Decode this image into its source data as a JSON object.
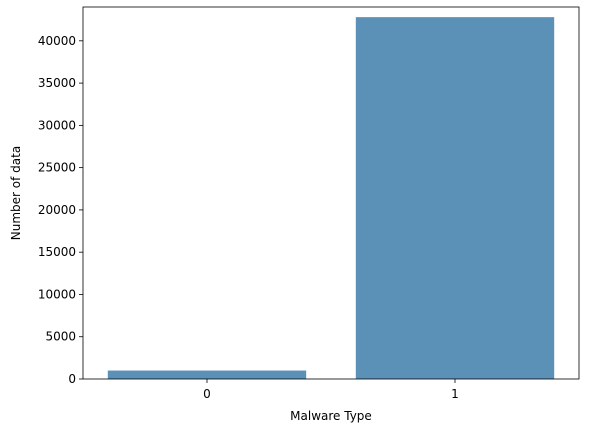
{
  "chart_data": {
    "type": "bar",
    "categories": [
      "0",
      "1"
    ],
    "values": [
      1000,
      42800
    ],
    "xlabel": "Malware Type",
    "ylabel": "Number of data",
    "ylim": [
      0,
      44000
    ],
    "yticks": [
      "0",
      "5000",
      "10000",
      "15000",
      "20000",
      "25000",
      "30000",
      "35000",
      "40000"
    ],
    "grid": false,
    "legend": "none",
    "bar_color": "#5b91b7"
  }
}
